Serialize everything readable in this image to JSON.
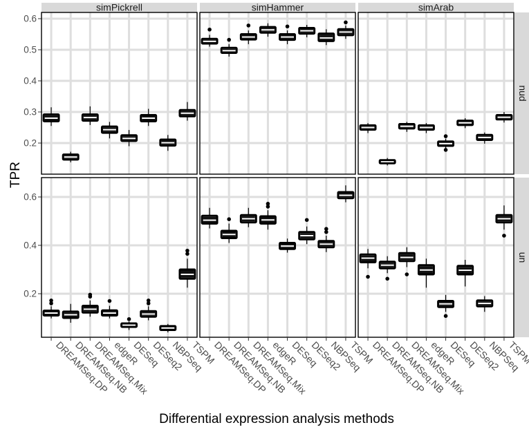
{
  "chart_data": {
    "type": "box",
    "ylabel": "TPR",
    "xlabel": "Differential expression analysis methods",
    "methods": [
      "DREAMSeq.DP",
      "DREAMSeq.NB",
      "DREAMSeq.Mix",
      "edgeR",
      "DESeq",
      "DESeq2",
      "NBPSeq",
      "TSPM"
    ],
    "columns": [
      "simPickrell",
      "simHammer",
      "simArab"
    ],
    "rows": [
      {
        "label": "nud",
        "ylim": [
          0.1,
          0.62
        ],
        "yticks": [
          0.2,
          0.3,
          0.4,
          0.5,
          0.6
        ],
        "ytick_labels": [
          "0.2",
          "0.3",
          "0.4",
          "0.5",
          "0.6"
        ],
        "panels": [
          {
            "column": "simPickrell",
            "boxes": [
              {
                "q1": 0.27,
                "median": 0.28,
                "q3": 0.292,
                "lower": 0.255,
                "upper": 0.315,
                "outliers": []
              },
              {
                "q1": 0.147,
                "median": 0.155,
                "q3": 0.163,
                "lower": 0.138,
                "upper": 0.172,
                "outliers": []
              },
              {
                "q1": 0.272,
                "median": 0.282,
                "q3": 0.292,
                "lower": 0.258,
                "upper": 0.318,
                "outliers": []
              },
              {
                "q1": 0.233,
                "median": 0.243,
                "q3": 0.253,
                "lower": 0.215,
                "upper": 0.268,
                "outliers": []
              },
              {
                "q1": 0.207,
                "median": 0.215,
                "q3": 0.225,
                "lower": 0.19,
                "upper": 0.242,
                "outliers": []
              },
              {
                "q1": 0.27,
                "median": 0.28,
                "q3": 0.29,
                "lower": 0.255,
                "upper": 0.31,
                "outliers": []
              },
              {
                "q1": 0.192,
                "median": 0.201,
                "q3": 0.211,
                "lower": 0.175,
                "upper": 0.226,
                "outliers": []
              },
              {
                "q1": 0.286,
                "median": 0.296,
                "q3": 0.306,
                "lower": 0.272,
                "upper": 0.332,
                "outliers": []
              }
            ]
          },
          {
            "column": "simHammer",
            "boxes": [
              {
                "q1": 0.52,
                "median": 0.527,
                "q3": 0.535,
                "lower": 0.51,
                "upper": 0.548,
                "outliers": [
                  0.565
                ]
              },
              {
                "q1": 0.49,
                "median": 0.497,
                "q3": 0.506,
                "lower": 0.478,
                "upper": 0.518,
                "outliers": [
                  0.532
                ]
              },
              {
                "q1": 0.533,
                "median": 0.541,
                "q3": 0.55,
                "lower": 0.518,
                "upper": 0.562,
                "outliers": [
                  0.578
                ]
              },
              {
                "q1": 0.555,
                "median": 0.564,
                "q3": 0.573,
                "lower": 0.542,
                "upper": 0.585,
                "outliers": []
              },
              {
                "q1": 0.532,
                "median": 0.541,
                "q3": 0.55,
                "lower": 0.518,
                "upper": 0.562,
                "outliers": [
                  0.575
                ]
              },
              {
                "q1": 0.552,
                "median": 0.561,
                "q3": 0.57,
                "lower": 0.54,
                "upper": 0.58,
                "outliers": []
              },
              {
                "q1": 0.528,
                "median": 0.538,
                "q3": 0.552,
                "lower": 0.515,
                "upper": 0.566,
                "outliers": []
              },
              {
                "q1": 0.547,
                "median": 0.557,
                "q3": 0.566,
                "lower": 0.535,
                "upper": 0.578,
                "outliers": [
                  0.588
                ]
              }
            ]
          },
          {
            "column": "simArab",
            "boxes": [
              {
                "q1": 0.243,
                "median": 0.25,
                "q3": 0.257,
                "lower": 0.232,
                "upper": 0.264,
                "outliers": []
              },
              {
                "q1": 0.135,
                "median": 0.14,
                "q3": 0.145,
                "lower": 0.128,
                "upper": 0.152,
                "outliers": []
              },
              {
                "q1": 0.247,
                "median": 0.254,
                "q3": 0.261,
                "lower": 0.236,
                "upper": 0.268,
                "outliers": []
              },
              {
                "q1": 0.243,
                "median": 0.25,
                "q3": 0.257,
                "lower": 0.232,
                "upper": 0.264,
                "outliers": []
              },
              {
                "q1": 0.191,
                "median": 0.198,
                "q3": 0.205,
                "lower": 0.182,
                "upper": 0.214,
                "outliers": [
                  0.178,
                  0.222
                ]
              },
              {
                "q1": 0.258,
                "median": 0.265,
                "q3": 0.272,
                "lower": 0.248,
                "upper": 0.28,
                "outliers": []
              },
              {
                "q1": 0.21,
                "median": 0.218,
                "q3": 0.226,
                "lower": 0.198,
                "upper": 0.234,
                "outliers": []
              },
              {
                "q1": 0.276,
                "median": 0.283,
                "q3": 0.29,
                "lower": 0.266,
                "upper": 0.3,
                "outliers": []
              }
            ]
          }
        ]
      },
      {
        "label": "un",
        "ylim": [
          0.02,
          0.68
        ],
        "yticks": [
          0.2,
          0.4,
          0.6
        ],
        "ytick_labels": [
          "0.2",
          "0.4",
          "0.6"
        ],
        "panels": [
          {
            "column": "simPickrell",
            "boxes": [
              {
                "q1": 0.11,
                "median": 0.12,
                "q3": 0.13,
                "lower": 0.098,
                "upper": 0.148,
                "outliers": [
                  0.16,
                  0.172
                ]
              },
              {
                "q1": 0.1,
                "median": 0.113,
                "q3": 0.126,
                "lower": 0.08,
                "upper": 0.158,
                "outliers": []
              },
              {
                "q1": 0.122,
                "median": 0.136,
                "q3": 0.15,
                "lower": 0.105,
                "upper": 0.172,
                "outliers": [
                  0.188,
                  0.196
                ]
              },
              {
                "q1": 0.11,
                "median": 0.12,
                "q3": 0.131,
                "lower": 0.098,
                "upper": 0.15,
                "outliers": [
                  0.17
                ]
              },
              {
                "q1": 0.063,
                "median": 0.07,
                "q3": 0.077,
                "lower": 0.05,
                "upper": 0.085,
                "outliers": [
                  0.095
                ]
              },
              {
                "q1": 0.105,
                "median": 0.116,
                "q3": 0.128,
                "lower": 0.09,
                "upper": 0.148,
                "outliers": [
                  0.16,
                  0.172
                ]
              },
              {
                "q1": 0.05,
                "median": 0.058,
                "q3": 0.066,
                "lower": 0.04,
                "upper": 0.075,
                "outliers": []
              },
              {
                "q1": 0.262,
                "median": 0.28,
                "q3": 0.3,
                "lower": 0.225,
                "upper": 0.345,
                "outliers": [
                  0.365,
                  0.378
                ]
              }
            ]
          },
          {
            "column": "simHammer",
            "boxes": [
              {
                "q1": 0.49,
                "median": 0.504,
                "q3": 0.522,
                "lower": 0.47,
                "upper": 0.555,
                "outliers": []
              },
              {
                "q1": 0.43,
                "median": 0.445,
                "q3": 0.46,
                "lower": 0.41,
                "upper": 0.49,
                "outliers": [
                  0.508
                ]
              },
              {
                "q1": 0.495,
                "median": 0.51,
                "q3": 0.525,
                "lower": 0.475,
                "upper": 0.555,
                "outliers": []
              },
              {
                "q1": 0.49,
                "median": 0.505,
                "q3": 0.52,
                "lower": 0.465,
                "upper": 0.545,
                "outliers": [
                  0.56,
                  0.572
                ]
              },
              {
                "q1": 0.385,
                "median": 0.397,
                "q3": 0.41,
                "lower": 0.37,
                "upper": 0.428,
                "outliers": []
              },
              {
                "q1": 0.425,
                "median": 0.44,
                "q3": 0.455,
                "lower": 0.405,
                "upper": 0.478,
                "outliers": [
                  0.505
                ]
              },
              {
                "q1": 0.392,
                "median": 0.405,
                "q3": 0.418,
                "lower": 0.372,
                "upper": 0.44,
                "outliers": [
                  0.455,
                  0.468
                ]
              },
              {
                "q1": 0.595,
                "median": 0.607,
                "q3": 0.62,
                "lower": 0.578,
                "upper": 0.648,
                "outliers": []
              }
            ]
          },
          {
            "column": "simArab",
            "boxes": [
              {
                "q1": 0.33,
                "median": 0.347,
                "q3": 0.362,
                "lower": 0.305,
                "upper": 0.385,
                "outliers": [
                  0.27
                ]
              },
              {
                "q1": 0.305,
                "median": 0.318,
                "q3": 0.332,
                "lower": 0.285,
                "upper": 0.355,
                "outliers": [
                  0.262
                ]
              },
              {
                "q1": 0.335,
                "median": 0.35,
                "q3": 0.368,
                "lower": 0.31,
                "upper": 0.392,
                "outliers": [
                  0.28
                ]
              },
              {
                "q1": 0.28,
                "median": 0.298,
                "q3": 0.318,
                "lower": 0.225,
                "upper": 0.345,
                "outliers": []
              },
              {
                "q1": 0.145,
                "median": 0.158,
                "q3": 0.17,
                "lower": 0.125,
                "upper": 0.195,
                "outliers": [
                  0.108
                ]
              },
              {
                "q1": 0.28,
                "median": 0.297,
                "q3": 0.315,
                "lower": 0.23,
                "upper": 0.34,
                "outliers": []
              },
              {
                "q1": 0.148,
                "median": 0.16,
                "q3": 0.172,
                "lower": 0.125,
                "upper": 0.19,
                "outliers": []
              },
              {
                "q1": 0.495,
                "median": 0.51,
                "q3": 0.525,
                "lower": 0.465,
                "upper": 0.565,
                "outliers": [
                  0.44
                ]
              }
            ]
          }
        ]
      }
    ]
  }
}
